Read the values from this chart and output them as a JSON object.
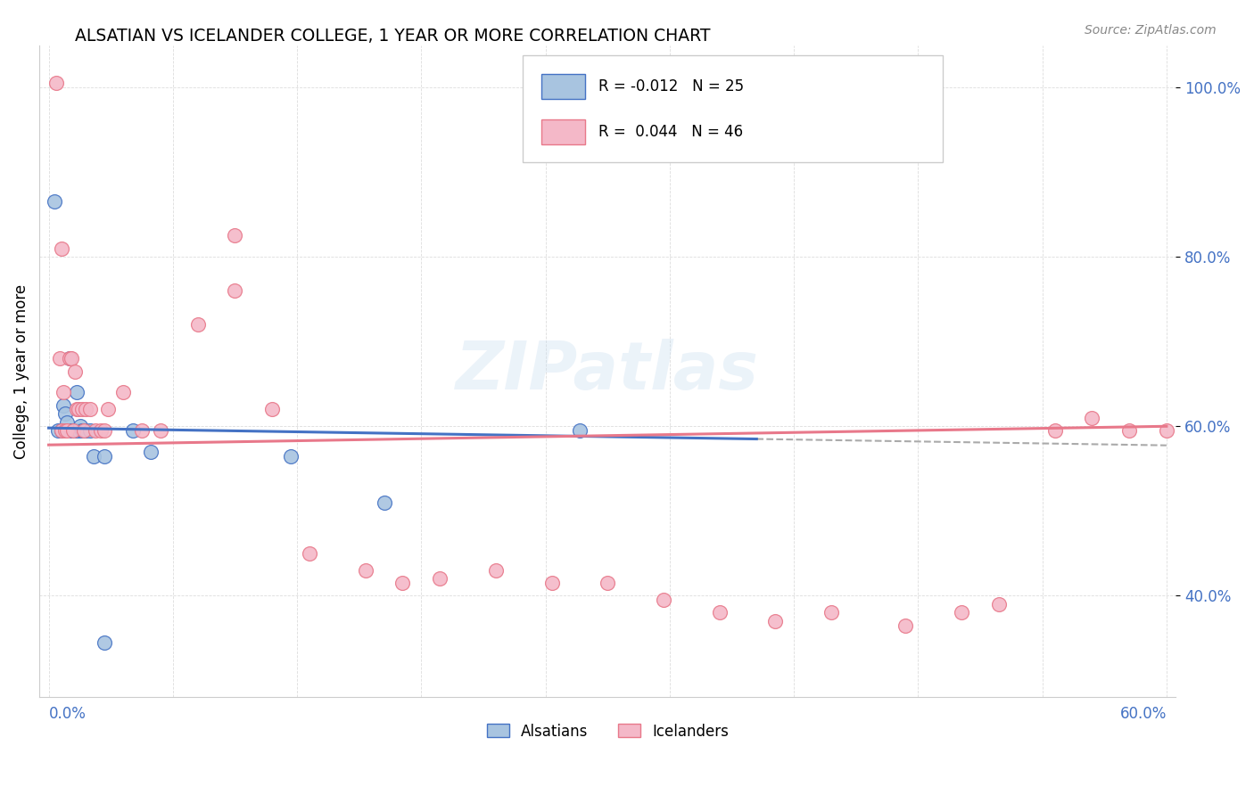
{
  "title": "ALSATIAN VS ICELANDER COLLEGE, 1 YEAR OR MORE CORRELATION CHART",
  "source": "Source: ZipAtlas.com",
  "ylabel": "College, 1 year or more",
  "watermark": "ZIPatlas",
  "legend_r_alsatian": "R = -0.012",
  "legend_n_alsatian": "N = 25",
  "legend_r_icelander": "R =  0.044",
  "legend_n_icelander": "N = 46",
  "alsatian_color": "#a8c4e0",
  "icelander_color": "#f4b8c8",
  "alsatian_line_color": "#4472c4",
  "icelander_line_color": "#e8788a",
  "background_color": "#ffffff",
  "xlim": [
    0.0,
    0.6
  ],
  "ylim": [
    0.28,
    1.05
  ],
  "yticks": [
    0.4,
    0.6,
    0.8,
    1.0
  ],
  "ytick_labels": [
    "40.0%",
    "60.0%",
    "80.0%",
    "100.0%"
  ],
  "alsatian_x": [
    0.003,
    0.005,
    0.007,
    0.008,
    0.009,
    0.01,
    0.011,
    0.012,
    0.013,
    0.014,
    0.015,
    0.016,
    0.017,
    0.018,
    0.019,
    0.02,
    0.022,
    0.024,
    0.03,
    0.045,
    0.055,
    0.13,
    0.18,
    0.285,
    0.03
  ],
  "alsatian_y": [
    0.865,
    0.595,
    0.595,
    0.625,
    0.615,
    0.605,
    0.68,
    0.595,
    0.595,
    0.595,
    0.64,
    0.595,
    0.6,
    0.595,
    0.595,
    0.595,
    0.595,
    0.565,
    0.565,
    0.595,
    0.57,
    0.565,
    0.51,
    0.595,
    0.345
  ],
  "icelander_x": [
    0.004,
    0.006,
    0.007,
    0.008,
    0.009,
    0.01,
    0.011,
    0.012,
    0.013,
    0.014,
    0.015,
    0.016,
    0.018,
    0.019,
    0.02,
    0.022,
    0.025,
    0.028,
    0.03,
    0.032,
    0.04,
    0.05,
    0.06,
    0.08,
    0.1,
    0.12,
    0.14,
    0.17,
    0.19,
    0.21,
    0.24,
    0.27,
    0.3,
    0.33,
    0.36,
    0.39,
    0.42,
    0.46,
    0.49,
    0.51,
    0.54,
    0.56,
    0.58,
    0.6,
    0.007,
    0.1
  ],
  "icelander_y": [
    1.005,
    0.68,
    0.595,
    0.64,
    0.595,
    0.595,
    0.68,
    0.68,
    0.595,
    0.665,
    0.62,
    0.62,
    0.62,
    0.595,
    0.62,
    0.62,
    0.595,
    0.595,
    0.595,
    0.62,
    0.64,
    0.595,
    0.595,
    0.72,
    0.76,
    0.62,
    0.45,
    0.43,
    0.415,
    0.42,
    0.43,
    0.415,
    0.415,
    0.395,
    0.38,
    0.37,
    0.38,
    0.365,
    0.38,
    0.39,
    0.595,
    0.61,
    0.595,
    0.595,
    0.81,
    0.825
  ]
}
